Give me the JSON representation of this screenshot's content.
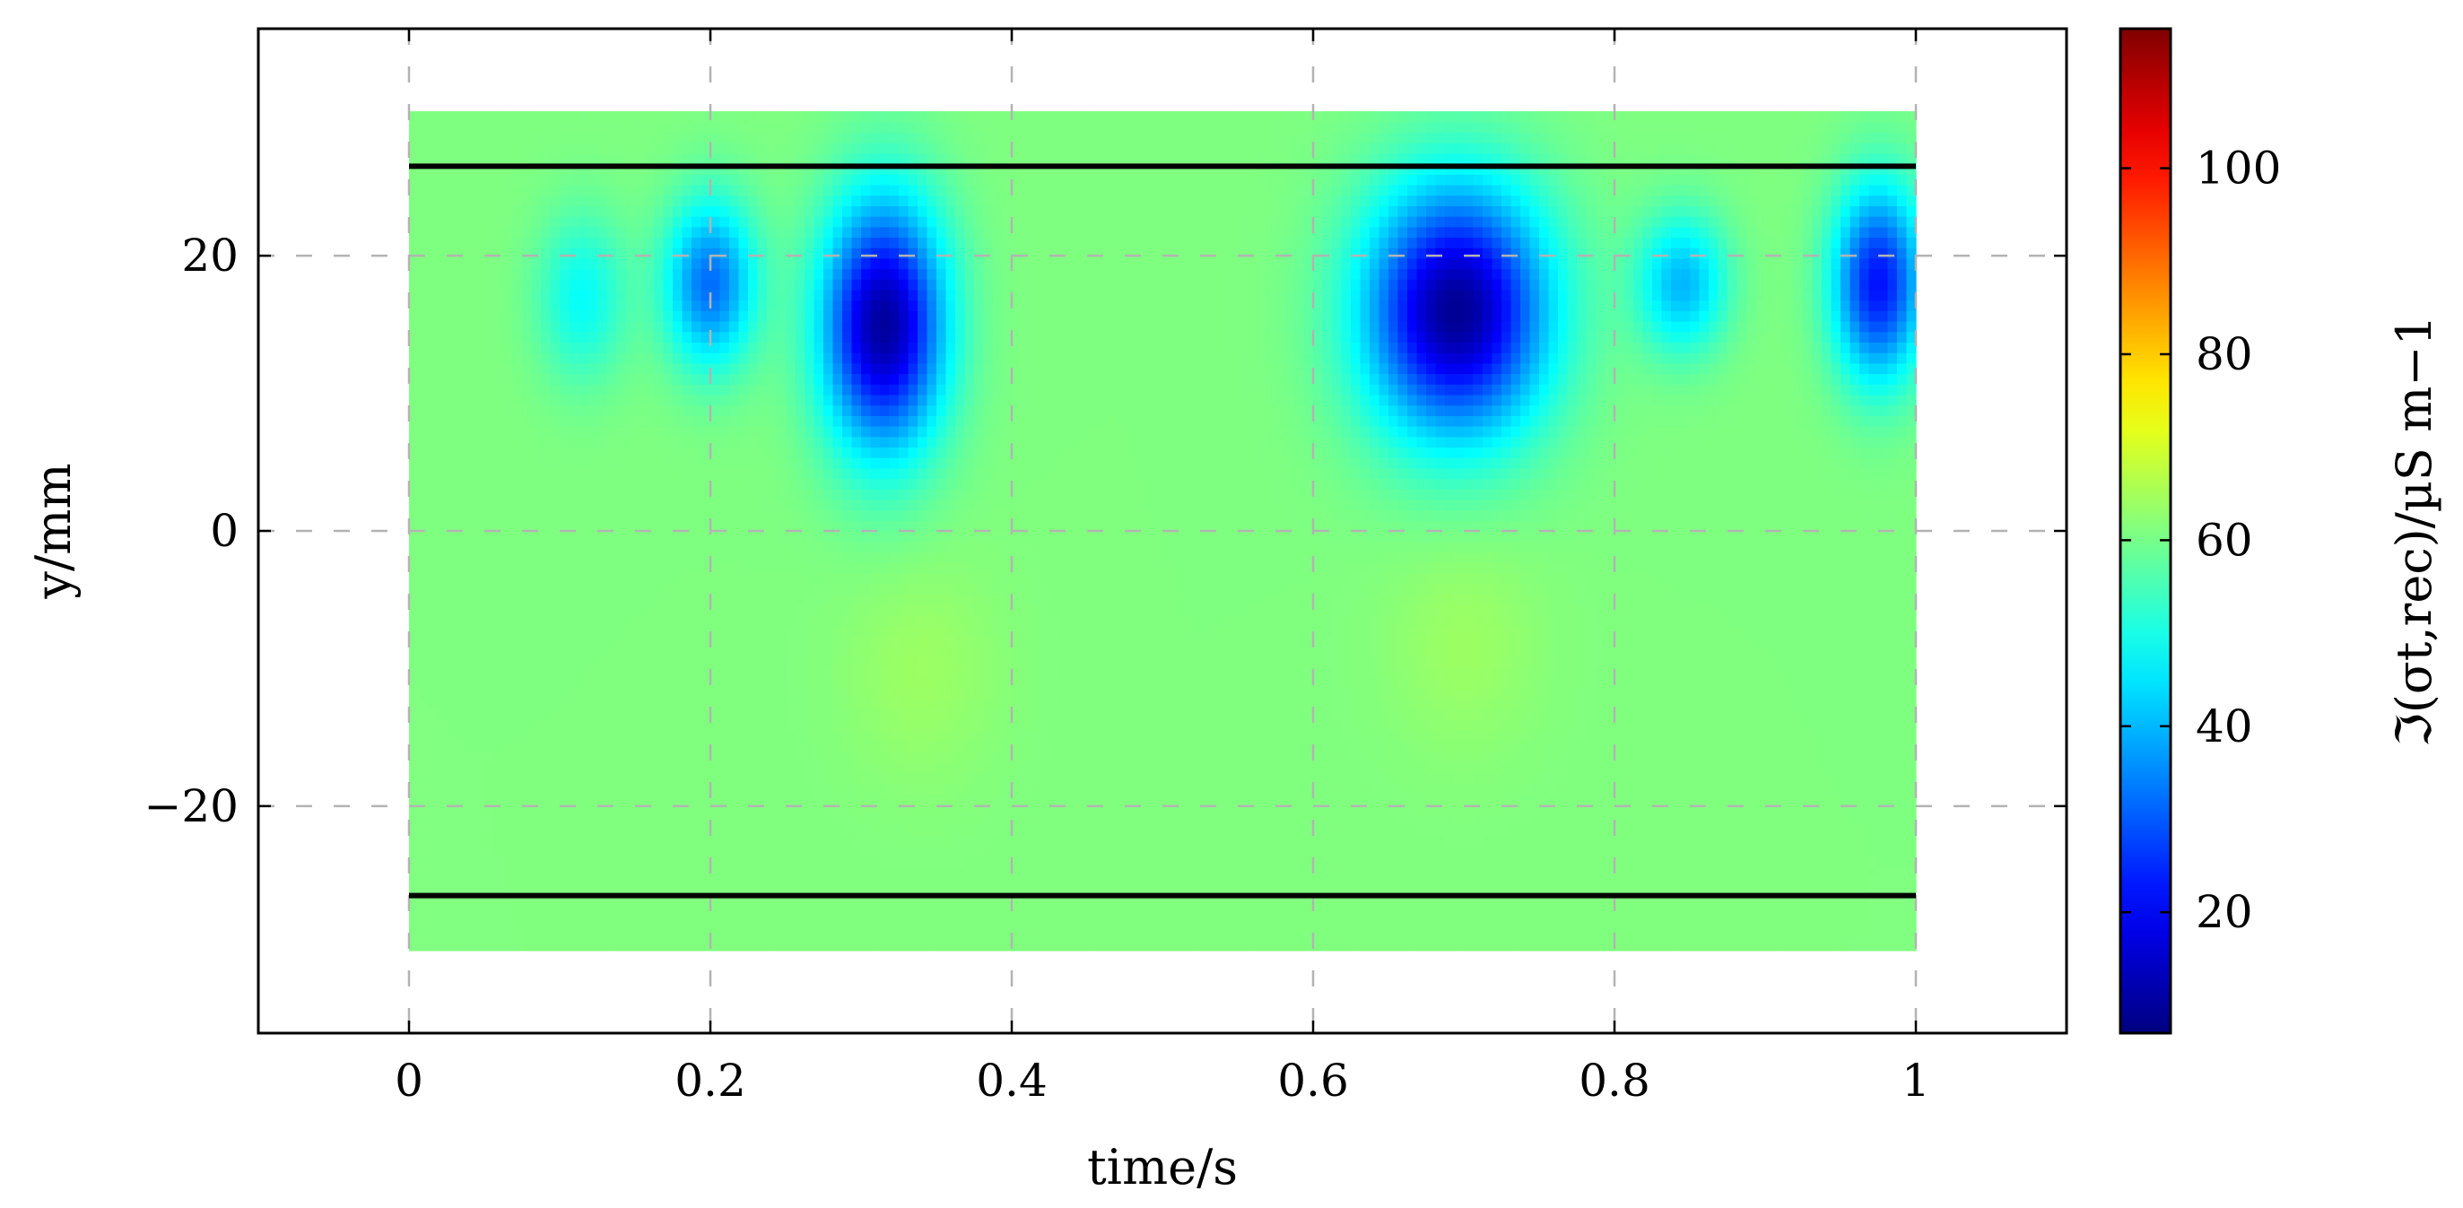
{
  "chart_data": {
    "type": "heatmap",
    "title": "",
    "xlabel": "time/s",
    "ylabel": "y/mm",
    "colorbar_label": "ℑ(σt,rec)/µS m−1",
    "xlim": [
      -0.1,
      1.1
    ],
    "ylim": [
      -36.5,
      36.5
    ],
    "clim": [
      7,
      115
    ],
    "colormap": "jet",
    "grid": true,
    "data_extent": {
      "x": [
        0,
        1
      ],
      "y": [
        -30.5,
        30.5
      ]
    },
    "background_value": 61,
    "x_ticks": [
      0,
      0.2,
      0.4,
      0.6,
      0.8,
      1
    ],
    "x_tick_labels": [
      "0",
      "0.2",
      "0.4",
      "0.6",
      "0.8",
      "1"
    ],
    "y_ticks": [
      -20,
      0,
      20
    ],
    "y_tick_labels": [
      "−20",
      "0",
      "20"
    ],
    "colorbar_ticks": [
      20,
      40,
      60,
      80,
      100
    ],
    "colorbar_tick_labels": [
      "20",
      "40",
      "60",
      "80",
      "100"
    ],
    "lines": [
      {
        "y": 26.5,
        "x": [
          0,
          1
        ],
        "color": "#000000"
      },
      {
        "y": -26.5,
        "x": [
          0,
          1
        ],
        "color": "#000000"
      }
    ],
    "features": [
      {
        "kind": "minimum",
        "t": 0.115,
        "y": 17,
        "value": 48,
        "spread_t": 0.03,
        "spread_y": 6
      },
      {
        "kind": "minimum",
        "t": 0.2,
        "y": 18,
        "value": 32,
        "spread_t": 0.03,
        "spread_y": 6
      },
      {
        "kind": "minimum",
        "t": 0.315,
        "y": 15,
        "value": 10,
        "spread_t": 0.04,
        "spread_y": 9
      },
      {
        "kind": "minimum",
        "t": 0.695,
        "y": 16,
        "value": 9,
        "spread_t": 0.06,
        "spread_y": 9
      },
      {
        "kind": "minimum",
        "t": 0.845,
        "y": 18,
        "value": 40,
        "spread_t": 0.03,
        "spread_y": 5
      },
      {
        "kind": "minimum",
        "t": 0.975,
        "y": 18,
        "value": 22,
        "spread_t": 0.03,
        "spread_y": 7
      },
      {
        "kind": "maximum",
        "t": 0.34,
        "y": -10,
        "value": 64,
        "spread_t": 0.05,
        "spread_y": 8
      },
      {
        "kind": "maximum",
        "t": 0.7,
        "y": -8,
        "value": 64,
        "spread_t": 0.05,
        "spread_y": 8
      }
    ]
  }
}
